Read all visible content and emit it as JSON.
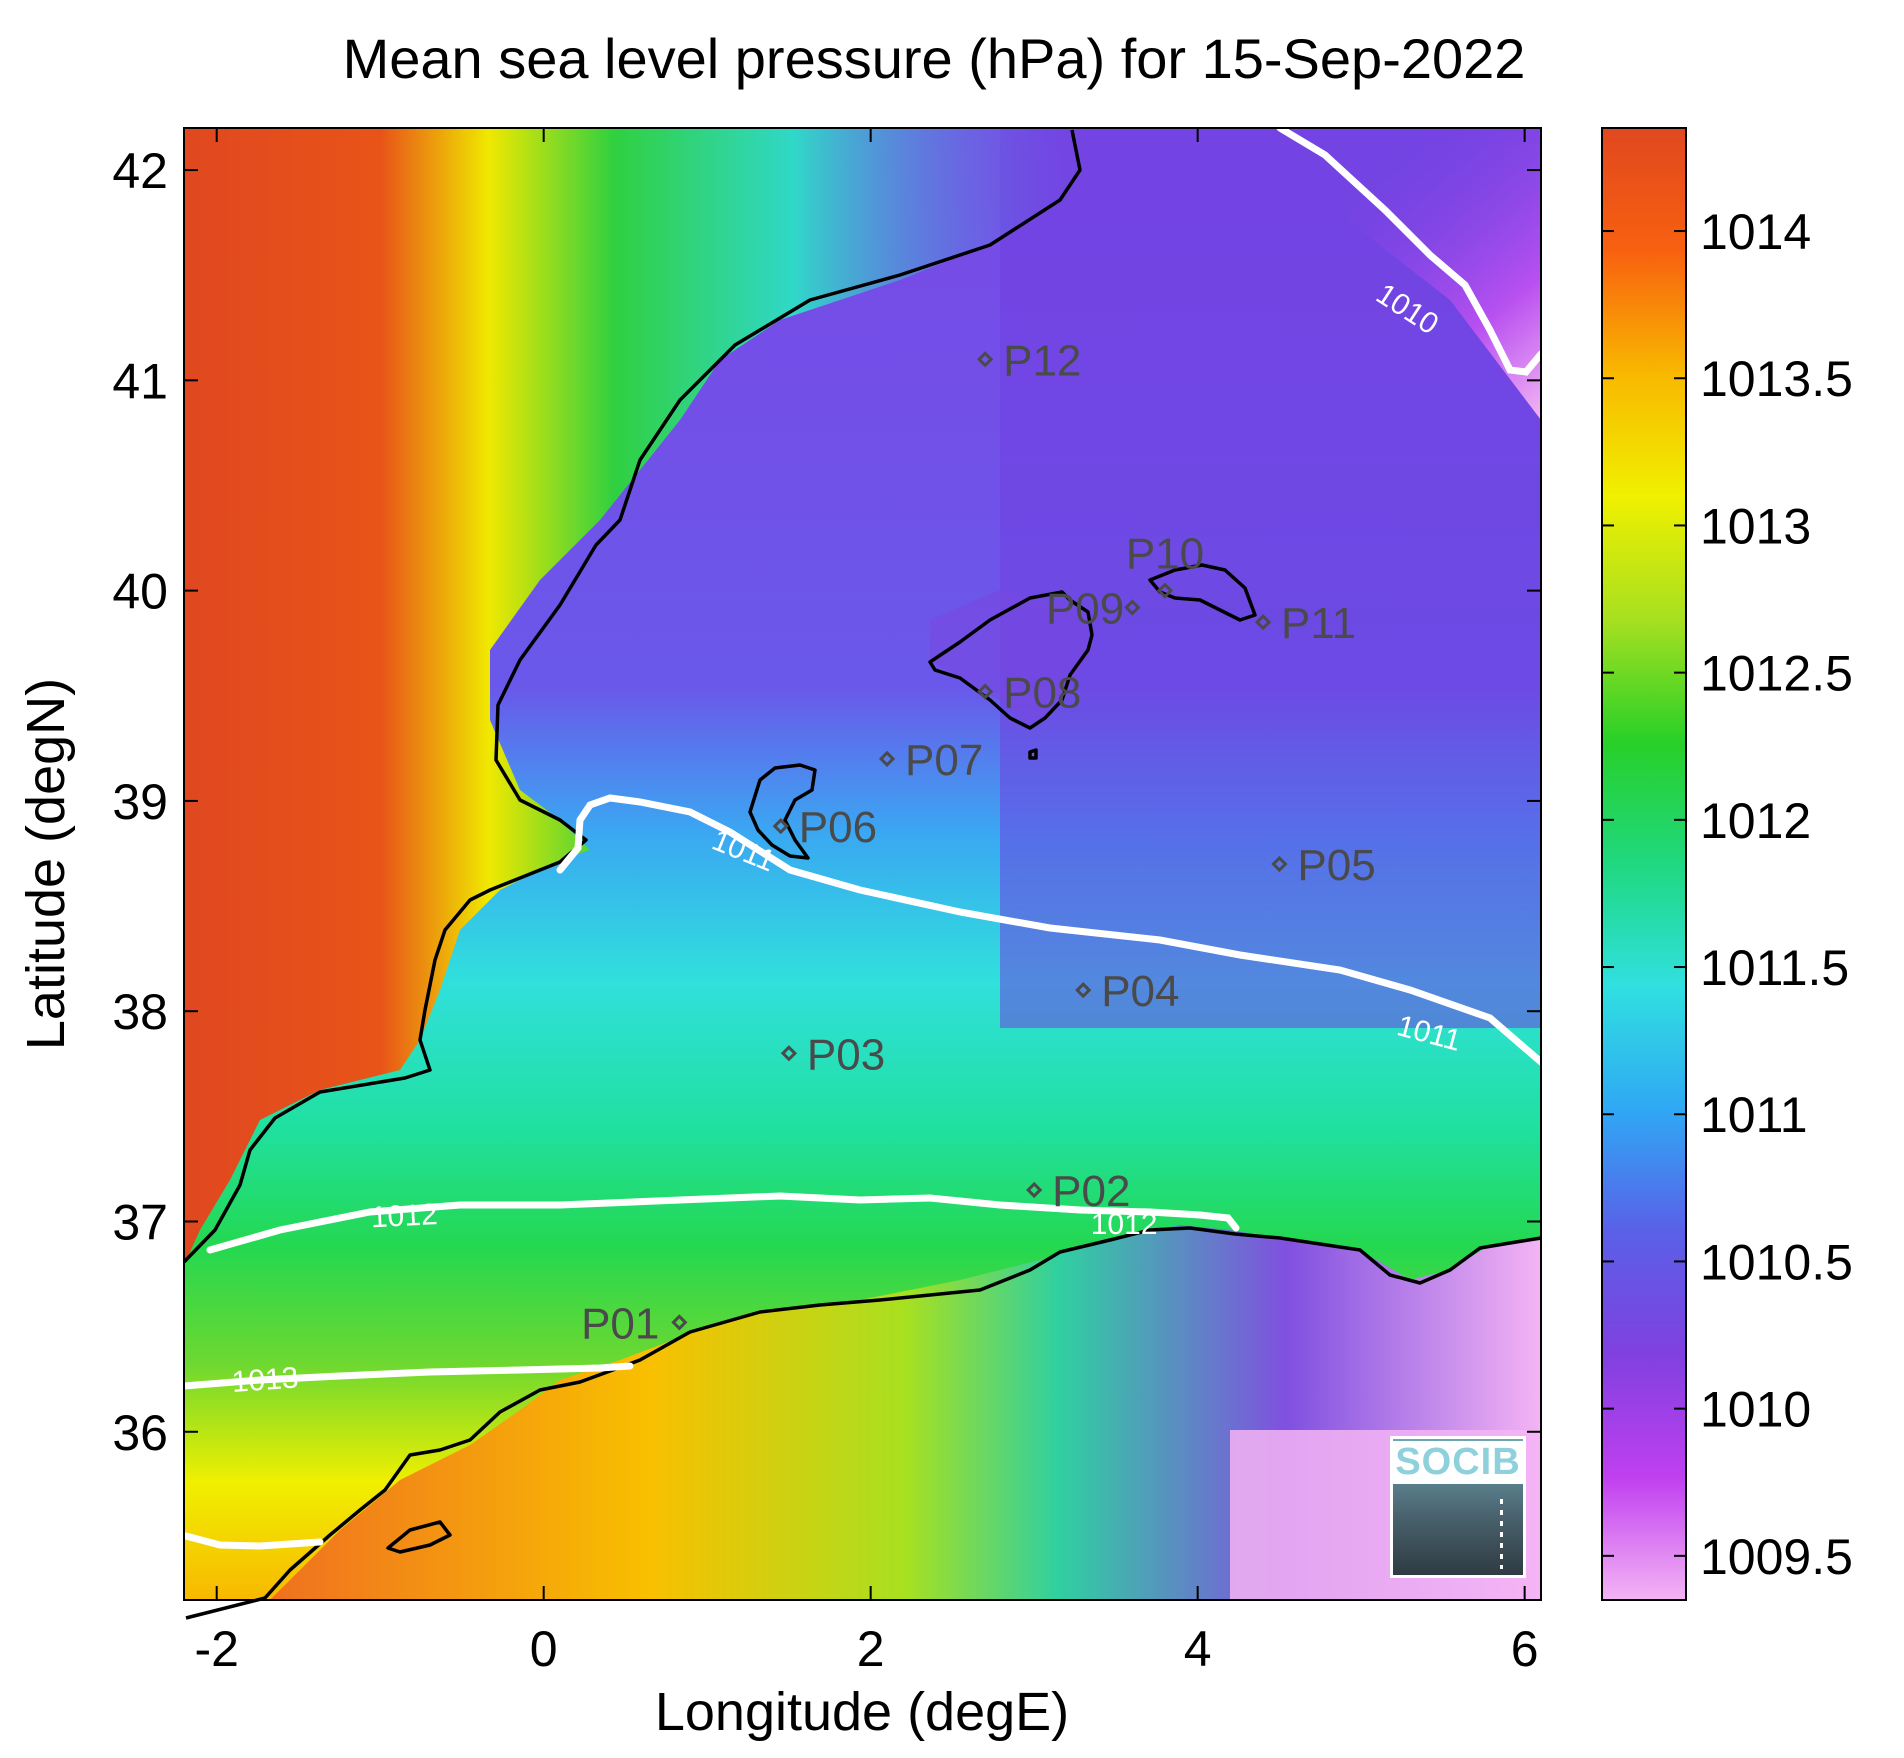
{
  "title": "Mean sea level pressure (hPa) for 15-Sep-2022",
  "x_axis": {
    "label": "Longitude (degE)",
    "range": [
      -2.2,
      6.1
    ],
    "ticks": [
      {
        "value": -2,
        "label": "-2"
      },
      {
        "value": 0,
        "label": "0"
      },
      {
        "value": 2,
        "label": "2"
      },
      {
        "value": 4,
        "label": "4"
      },
      {
        "value": 6,
        "label": "6"
      }
    ]
  },
  "y_axis": {
    "label": "Latitude (degN)",
    "range": [
      35.2,
      42.2
    ],
    "ticks": [
      {
        "value": 36,
        "label": "36"
      },
      {
        "value": 37,
        "label": "37"
      },
      {
        "value": 38,
        "label": "38"
      },
      {
        "value": 39,
        "label": "39"
      },
      {
        "value": 40,
        "label": "40"
      },
      {
        "value": 41,
        "label": "41"
      },
      {
        "value": 42,
        "label": "42"
      }
    ]
  },
  "colorbar": {
    "range": [
      1009.35,
      1014.35
    ],
    "ticks": [
      {
        "value": 1009.5,
        "label": "1009.5"
      },
      {
        "value": 1010,
        "label": "1010"
      },
      {
        "value": 1010.5,
        "label": "1010.5"
      },
      {
        "value": 1011,
        "label": "1011"
      },
      {
        "value": 1011.5,
        "label": "1011.5"
      },
      {
        "value": 1012,
        "label": "1012"
      },
      {
        "value": 1012.5,
        "label": "1012.5"
      },
      {
        "value": 1013,
        "label": "1013"
      },
      {
        "value": 1013.5,
        "label": "1013.5"
      },
      {
        "value": 1014,
        "label": "1014"
      }
    ],
    "colors": [
      "#f4b4f4",
      "#c040f0",
      "#8040e0",
      "#5a60e8",
      "#2fa8f4",
      "#30e0e0",
      "#20d880",
      "#28d028",
      "#a8e020",
      "#f0f000",
      "#f8b800",
      "#f86010",
      "#e04820"
    ]
  },
  "points": [
    {
      "label": "P01",
      "lon": 0.83,
      "lat": 36.52,
      "anchor": "left"
    },
    {
      "label": "P02",
      "lon": 3.0,
      "lat": 37.15,
      "anchor": "right"
    },
    {
      "label": "P03",
      "lon": 1.5,
      "lat": 37.8,
      "anchor": "right"
    },
    {
      "label": "P04",
      "lon": 3.3,
      "lat": 38.1,
      "anchor": "right"
    },
    {
      "label": "P05",
      "lon": 4.5,
      "lat": 38.7,
      "anchor": "right"
    },
    {
      "label": "P06",
      "lon": 1.45,
      "lat": 38.88,
      "anchor": "right"
    },
    {
      "label": "P07",
      "lon": 2.1,
      "lat": 39.2,
      "anchor": "right"
    },
    {
      "label": "P08",
      "lon": 2.7,
      "lat": 39.52,
      "anchor": "right"
    },
    {
      "label": "P09",
      "lon": 3.6,
      "lat": 39.92,
      "anchor": "leftover"
    },
    {
      "label": "P10",
      "lon": 3.8,
      "lat": 40.0,
      "anchor": "above"
    },
    {
      "label": "P11",
      "lon": 4.4,
      "lat": 39.85,
      "anchor": "right"
    },
    {
      "label": "P12",
      "lon": 2.7,
      "lat": 41.1,
      "anchor": "right"
    }
  ],
  "contour_labels": [
    {
      "text": "1010",
      "lon": 5.25,
      "lat": 41.3,
      "rotate": 33
    },
    {
      "text": "1011",
      "lon": 1.2,
      "lat": 38.72,
      "rotate": 22
    },
    {
      "text": "1011",
      "lon": 5.4,
      "lat": 37.85,
      "rotate": 15
    },
    {
      "text": "1012",
      "lon": -0.85,
      "lat": 36.98,
      "rotate": -3
    },
    {
      "text": "1012",
      "lon": 3.55,
      "lat": 36.94,
      "rotate": 0
    },
    {
      "text": "1013",
      "lon": -1.7,
      "lat": 36.2,
      "rotate": -4
    }
  ],
  "logo": {
    "text": "SOCIB"
  }
}
